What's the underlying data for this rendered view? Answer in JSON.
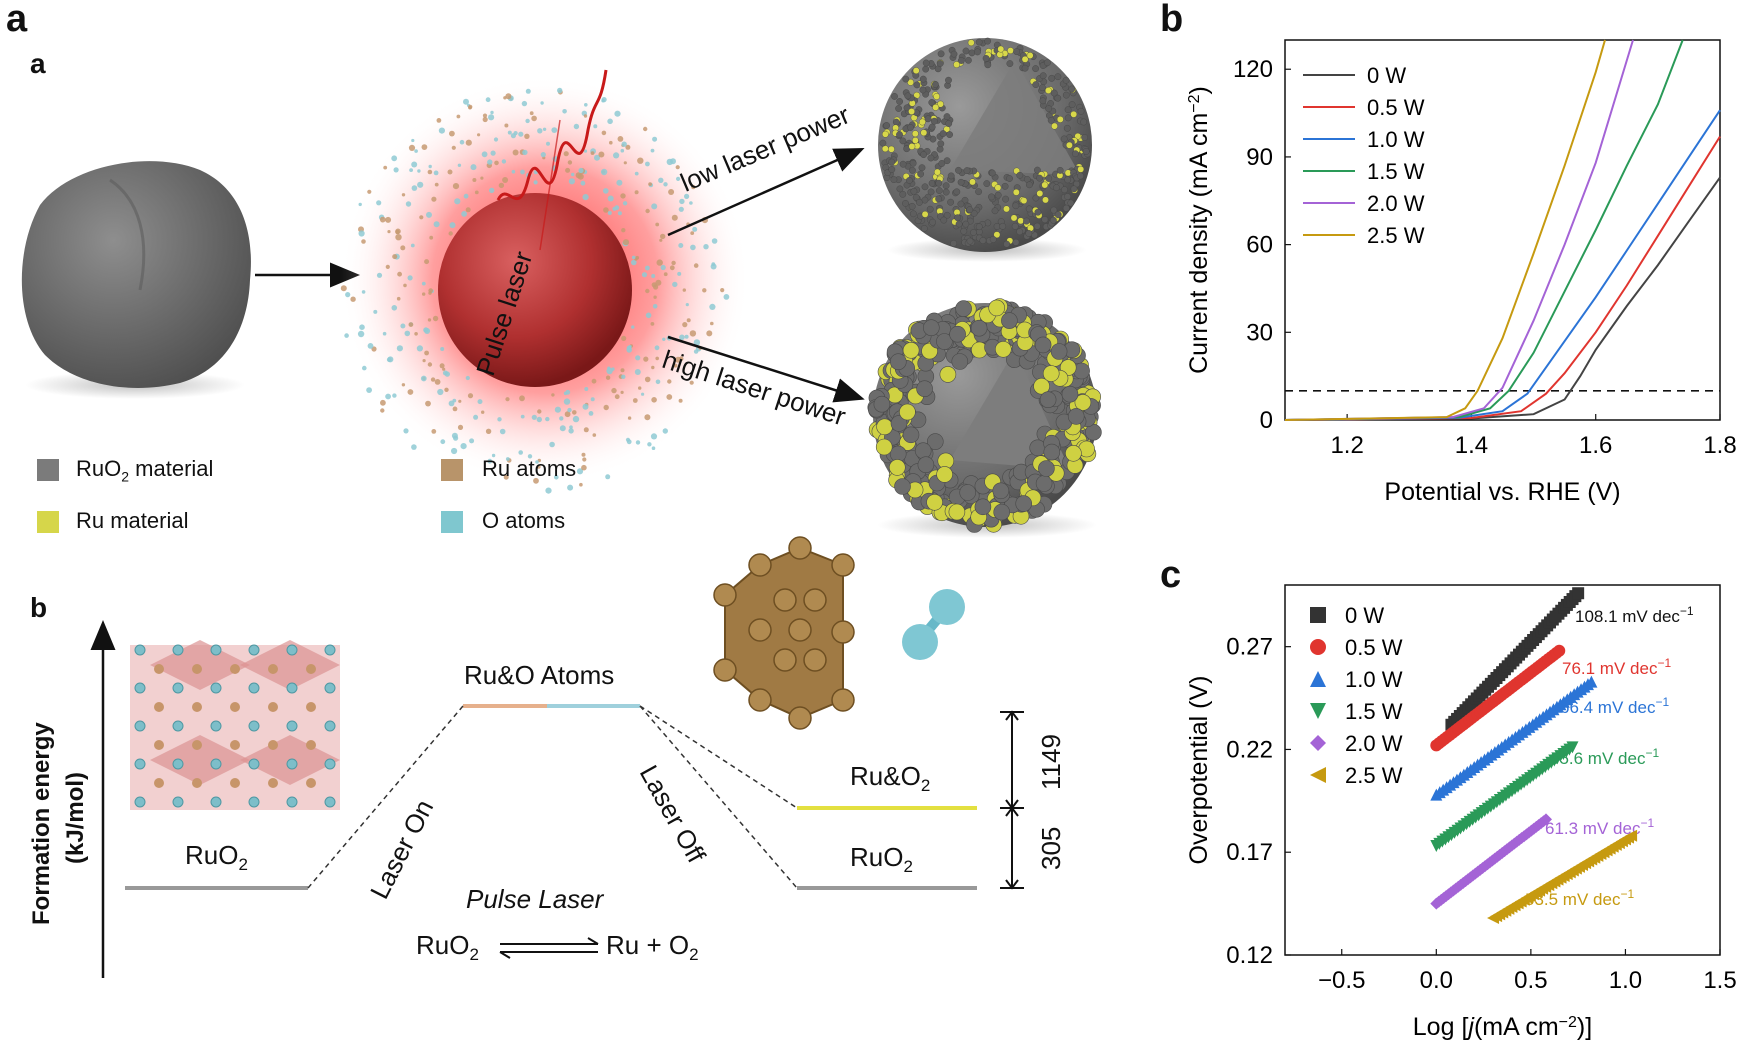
{
  "figure": {
    "outer_label": "a",
    "panel_a": {
      "label": "a",
      "arrow_low": "low laser power",
      "arrow_high": "high laser power",
      "pulse_label": "Pulse laser",
      "legend": [
        {
          "label": "RuO",
          "sub": "2",
          "tail": " material",
          "color": "#7b7b7b"
        },
        {
          "label": "Ru material",
          "sub": "",
          "tail": "",
          "color": "#d6d64a"
        },
        {
          "label": "Ru atoms",
          "sub": "",
          "tail": "",
          "color": "#b8946a"
        },
        {
          "label": "O atoms",
          "sub": "",
          "tail": "",
          "color": "#7fc7cf"
        }
      ]
    },
    "panel_b_energy": {
      "label": "b",
      "y_axis": "Formation energy",
      "y_axis_unit": "(kJ/mol)",
      "left_state": "RuO",
      "left_state_sub": "2",
      "top_state": "Ru&O Atoms",
      "right_upper": "Ru&O",
      "right_upper_sub": "2",
      "right_lower": "RuO",
      "right_lower_sub": "2",
      "laser_on": "Laser On",
      "laser_off": "Laser Off",
      "pulse_laser": "Pulse Laser",
      "eq_left": "RuO",
      "eq_left_sub": "2",
      "eq_right": "Ru + O",
      "eq_right_sub": "2",
      "gap_upper": "1149",
      "gap_lower": "305"
    }
  },
  "chart_data": [
    {
      "panel": "b",
      "type": "line",
      "xlabel": "Potential vs. RHE (V)",
      "ylabel": "Current density (mA cm",
      "ylabel_sup": "−2",
      "ylabel_tail": ")",
      "xlim": [
        1.1,
        1.8
      ],
      "ylim": [
        0,
        130
      ],
      "xticks": [
        "1.2",
        "1.4",
        "1.6",
        "1.8"
      ],
      "yticks": [
        "0",
        "30",
        "60",
        "90",
        "120"
      ],
      "reference_line_y": 10,
      "legend_position": "top-left",
      "series": [
        {
          "name": "0  W",
          "color": "#444444",
          "x": [
            1.1,
            1.4,
            1.5,
            1.55,
            1.575,
            1.6,
            1.65,
            1.7,
            1.75,
            1.8
          ],
          "y": [
            0,
            0.5,
            2,
            7,
            15,
            24,
            39,
            53,
            68,
            83
          ]
        },
        {
          "name": "0.5  W",
          "color": "#e0352f",
          "x": [
            1.1,
            1.4,
            1.48,
            1.52,
            1.55,
            1.6,
            1.65,
            1.7,
            1.75,
            1.8
          ],
          "y": [
            0,
            0.7,
            3,
            9,
            16,
            30,
            46,
            63,
            80,
            97
          ]
        },
        {
          "name": "1.0  W",
          "color": "#2b74d6",
          "x": [
            1.1,
            1.38,
            1.45,
            1.49,
            1.52,
            1.6,
            1.65,
            1.7,
            1.75,
            1.8
          ],
          "y": [
            0,
            0.8,
            3,
            9,
            18,
            42,
            58,
            74,
            90,
            106
          ]
        },
        {
          "name": "1.5  W",
          "color": "#2a9a58",
          "x": [
            1.1,
            1.38,
            1.43,
            1.46,
            1.5,
            1.55,
            1.6,
            1.65,
            1.7,
            1.74
          ],
          "y": [
            0,
            1,
            4,
            10,
            23,
            44,
            65,
            87,
            108,
            130
          ]
        },
        {
          "name": "2.0  W",
          "color": "#a463d6",
          "x": [
            1.1,
            1.37,
            1.42,
            1.45,
            1.5,
            1.55,
            1.6,
            1.66
          ],
          "y": [
            0,
            1,
            4,
            11,
            34,
            60,
            88,
            130
          ]
        },
        {
          "name": "2.5  W",
          "color": "#c69a10",
          "x": [
            1.1,
            1.36,
            1.39,
            1.41,
            1.45,
            1.5,
            1.55,
            1.6,
            1.615
          ],
          "y": [
            0,
            1,
            4,
            10,
            28,
            57,
            87,
            119,
            130
          ]
        }
      ]
    },
    {
      "panel": "c",
      "type": "scatter",
      "xlabel_pre": "Log [",
      "xlabel_italic": "j",
      "xlabel_mid": "(mA cm",
      "xlabel_sup": "−2",
      "xlabel_post": ")]",
      "ylabel": "Overpotential (V)",
      "xlim": [
        -0.8,
        1.5
      ],
      "ylim": [
        0.12,
        0.3
      ],
      "xticks": [
        "−0.5",
        "0.0",
        "0.5",
        "1.0",
        "1.5"
      ],
      "yticks": [
        "0.12",
        "0.17",
        "0.22",
        "0.27"
      ],
      "legend_position": "top-left",
      "series": [
        {
          "name": "0  W",
          "color": "#333333",
          "marker": "square",
          "x_start": 0.08,
          "x_end": 0.75,
          "y_start": 0.232,
          "y_end": 0.296,
          "slope_label": "108.1 mV dec",
          "slope_sup": "−1"
        },
        {
          "name": "0.5  W",
          "color": "#e0352f",
          "marker": "circle",
          "x_start": 0.0,
          "x_end": 0.65,
          "y_start": 0.222,
          "y_end": 0.268,
          "slope_label": "76.1 mV dec",
          "slope_sup": "−1"
        },
        {
          "name": "1.0  W",
          "color": "#2b74d6",
          "marker": "triangle-up",
          "x_start": 0.0,
          "x_end": 0.82,
          "y_start": 0.198,
          "y_end": 0.253,
          "slope_label": "66.4 mV dec",
          "slope_sup": "−1"
        },
        {
          "name": "1.5  W",
          "color": "#2a9a58",
          "marker": "triangle-down",
          "x_start": 0.0,
          "x_end": 0.72,
          "y_start": 0.173,
          "y_end": 0.221,
          "slope_label": "65.6 mV dec",
          "slope_sup": "−1"
        },
        {
          "name": "2.0  W",
          "color": "#a463d6",
          "marker": "diamond",
          "x_start": 0.0,
          "x_end": 0.58,
          "y_start": 0.145,
          "y_end": 0.186,
          "slope_label": "61.3 mV dec",
          "slope_sup": "−1"
        },
        {
          "name": "2.5  W",
          "color": "#c69a10",
          "marker": "triangle-left",
          "x_start": 0.3,
          "x_end": 1.03,
          "y_start": 0.138,
          "y_end": 0.178,
          "slope_label": "53.5 mV dec",
          "slope_sup": "−1"
        }
      ]
    }
  ]
}
